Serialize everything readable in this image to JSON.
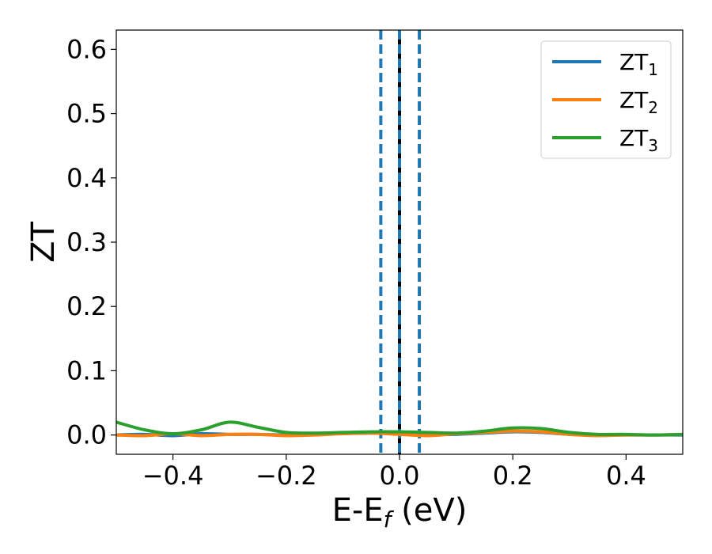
{
  "chart_data": {
    "type": "line",
    "title": "",
    "xlabel": {
      "base": "E-E",
      "sub": "f",
      "unit": " (eV)"
    },
    "ylabel": "ZT",
    "xlim": [
      -0.5,
      0.5
    ],
    "ylim": [
      -0.03,
      0.63
    ],
    "x_ticks": [
      -0.4,
      -0.2,
      0.0,
      0.2,
      0.4
    ],
    "x_tick_labels": [
      "−0.4",
      "−0.2",
      "0.0",
      "0.2",
      "0.4"
    ],
    "y_ticks": [
      0.0,
      0.1,
      0.2,
      0.3,
      0.4,
      0.5,
      0.6
    ],
    "y_tick_labels": [
      "0.0",
      "0.1",
      "0.2",
      "0.3",
      "0.4",
      "0.5",
      "0.6"
    ],
    "grid": false,
    "legend_position": "top-right",
    "series": [
      {
        "name": "ZT1",
        "label_base": "ZT",
        "label_sub": "1",
        "color": "#1f77b4",
        "x": [
          -0.5,
          -0.45,
          -0.4,
          -0.35,
          -0.3,
          -0.25,
          -0.2,
          -0.15,
          -0.1,
          -0.05,
          0.0,
          0.05,
          0.1,
          0.15,
          0.2,
          0.25,
          0.3,
          0.35,
          0.4,
          0.45,
          0.5
        ],
        "y": [
          0.0,
          0.001,
          -0.001,
          0.002,
          0.001,
          0.001,
          0.0,
          0.001,
          0.002,
          0.003,
          0.002,
          0.001,
          0.001,
          0.003,
          0.005,
          0.004,
          0.001,
          0.0,
          0.0,
          0.0,
          0.0
        ]
      },
      {
        "name": "ZT2",
        "label_base": "ZT",
        "label_sub": "2",
        "color": "#ff7f0e",
        "x": [
          -0.5,
          -0.45,
          -0.4,
          -0.35,
          -0.3,
          -0.25,
          -0.2,
          -0.15,
          -0.1,
          -0.05,
          0.0,
          0.05,
          0.1,
          0.15,
          0.2,
          0.25,
          0.3,
          0.35,
          0.4,
          0.45,
          0.5
        ],
        "y": [
          0.0,
          -0.001,
          0.002,
          -0.001,
          0.001,
          0.001,
          -0.001,
          0.0,
          0.002,
          0.003,
          0.001,
          -0.001,
          0.002,
          0.004,
          0.006,
          0.005,
          0.001,
          -0.001,
          0.0,
          0.0,
          0.001
        ]
      },
      {
        "name": "ZT3",
        "label_base": "ZT",
        "label_sub": "3",
        "color": "#2ca02c",
        "x": [
          -0.5,
          -0.45,
          -0.4,
          -0.35,
          -0.3,
          -0.25,
          -0.2,
          -0.15,
          -0.1,
          -0.05,
          0.0,
          0.05,
          0.1,
          0.15,
          0.2,
          0.25,
          0.3,
          0.35,
          0.4,
          0.45,
          0.5
        ],
        "y": [
          0.02,
          0.008,
          0.002,
          0.008,
          0.02,
          0.012,
          0.004,
          0.003,
          0.004,
          0.005,
          0.005,
          0.004,
          0.003,
          0.006,
          0.011,
          0.01,
          0.004,
          0.001,
          0.001,
          0.0,
          0.001
        ]
      }
    ],
    "vlines": [
      {
        "x": -0.033,
        "style": "dashed",
        "color": "#1f77b4"
      },
      {
        "x": 0.0,
        "style": "solid",
        "color": "#000000"
      },
      {
        "x": 0.0,
        "style": "dashed",
        "color": "#1f77b4"
      },
      {
        "x": 0.035,
        "style": "dashed",
        "color": "#1f77b4"
      }
    ]
  }
}
